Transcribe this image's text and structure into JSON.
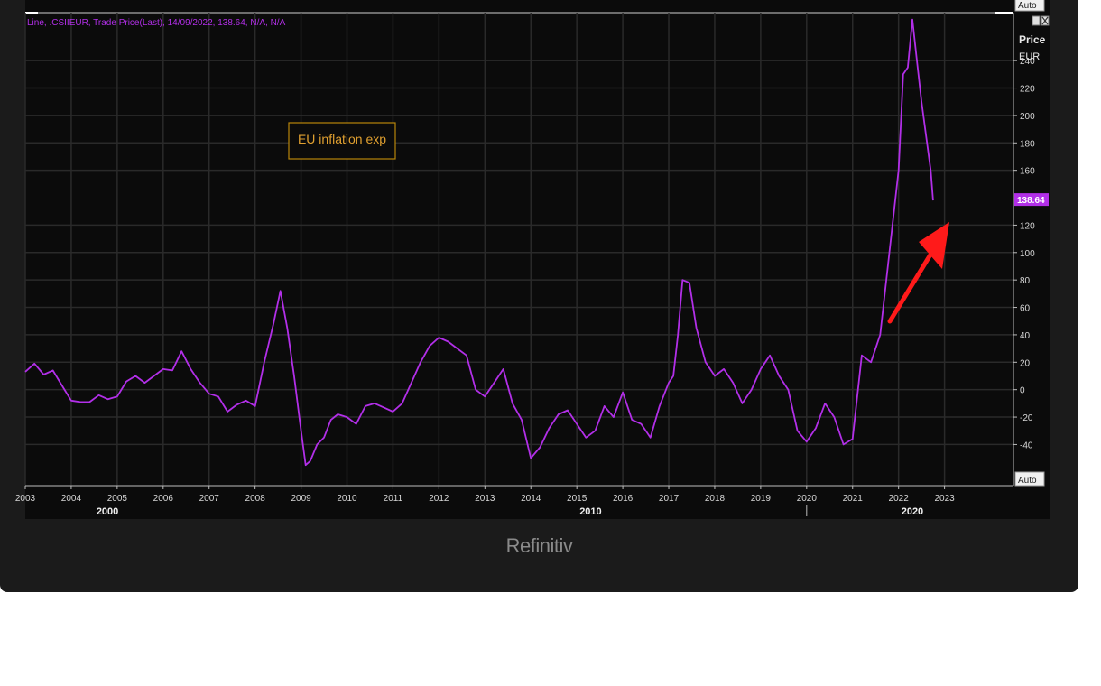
{
  "caption": "Refinitiv",
  "chart_data": {
    "type": "line",
    "header": "Line, .CSIIEUR, Trade Price(Last), 14/09/2022, 138.64, N/A, N/A",
    "annotation": "EU inflation exp",
    "last_value_label": "138.64",
    "auto_label_top": "Auto",
    "auto_label_bottom": "Auto",
    "axis_title": "Price",
    "axis_unit": "EUR",
    "ylim": [
      -70,
      275
    ],
    "xlim": [
      2003.0,
      2024.5
    ],
    "y_ticks": [
      -40,
      -20,
      0,
      20,
      40,
      60,
      80,
      100,
      120,
      160,
      180,
      200,
      220,
      240
    ],
    "x_year_ticks": [
      "2003",
      "2004",
      "2005",
      "2006",
      "2007",
      "2008",
      "2009",
      "2010",
      "2011",
      "2012",
      "2013",
      "2014",
      "2015",
      "2016",
      "2017",
      "2018",
      "2019",
      "2020",
      "2021",
      "2022",
      "2023"
    ],
    "x_decade_labels": [
      {
        "label": "2000",
        "x": 2006.3
      },
      {
        "label": "2010",
        "x": 2015.3
      },
      {
        "label": "2020",
        "x": 2022.3
      }
    ],
    "colors": {
      "line": "#b22fe8",
      "annotation_border": "#b8860b",
      "annotation_text": "#e0a030",
      "arrow": "#ff1a1a",
      "grid": "#2a2a2a",
      "axis_text": "#d8d8d8"
    },
    "series": [
      {
        "x": [
          2003.0,
          2003.2,
          2003.4,
          2003.6,
          2003.8,
          2004.0,
          2004.2,
          2004.4,
          2004.6,
          2004.8,
          2005.0,
          2005.2,
          2005.4,
          2005.6,
          2005.8,
          2006.0,
          2006.2,
          2006.4,
          2006.6,
          2006.8,
          2007.0,
          2007.2,
          2007.4,
          2007.6,
          2007.8,
          2008.0,
          2008.2,
          2008.4,
          2008.55,
          2008.7,
          2008.85,
          2009.0,
          2009.1,
          2009.2,
          2009.35,
          2009.5,
          2009.65,
          2009.8,
          2010.0,
          2010.2,
          2010.4,
          2010.6,
          2010.8,
          2011.0,
          2011.2,
          2011.4,
          2011.6,
          2011.8,
          2012.0,
          2012.2,
          2012.4,
          2012.6,
          2012.8,
          2013.0,
          2013.2,
          2013.4,
          2013.6,
          2013.8,
          2014.0,
          2014.2,
          2014.4,
          2014.6,
          2014.8,
          2015.0,
          2015.2,
          2015.4,
          2015.6,
          2015.8,
          2016.0,
          2016.2,
          2016.4,
          2016.6,
          2016.8,
          2017.0,
          2017.1,
          2017.2,
          2017.3,
          2017.45,
          2017.6,
          2017.8,
          2018.0,
          2018.2,
          2018.4,
          2018.6,
          2018.8,
          2019.0,
          2019.2,
          2019.4,
          2019.6,
          2019.8,
          2020.0,
          2020.2,
          2020.4,
          2020.6,
          2020.8,
          2021.0,
          2021.2,
          2021.4,
          2021.6,
          2021.8,
          2022.0,
          2022.1,
          2022.2,
          2022.3,
          2022.4,
          2022.5,
          2022.6,
          2022.7,
          2022.75
        ],
        "values": [
          13,
          19,
          11,
          14,
          3,
          -8,
          -9,
          -9,
          -4,
          -7,
          -5,
          6,
          10,
          5,
          10,
          15,
          14,
          28,
          15,
          5,
          -3,
          -5,
          -16,
          -11,
          -8,
          -12,
          20,
          48,
          72,
          45,
          10,
          -30,
          -55,
          -52,
          -40,
          -35,
          -22,
          -18,
          -20,
          -25,
          -12,
          -10,
          -13,
          -16,
          -10,
          5,
          20,
          32,
          38,
          35,
          30,
          25,
          0,
          -5,
          5,
          15,
          -10,
          -22,
          -50,
          -42,
          -28,
          -18,
          -15,
          -25,
          -35,
          -30,
          -12,
          -20,
          -2,
          -22,
          -25,
          -35,
          -12,
          5,
          10,
          40,
          80,
          78,
          45,
          20,
          10,
          15,
          5,
          -10,
          0,
          15,
          25,
          10,
          0,
          -30,
          -38,
          -28,
          -10,
          -20,
          -40,
          -36,
          25,
          20,
          40,
          100,
          160,
          230,
          235,
          270,
          240,
          210,
          185,
          160,
          138
        ]
      }
    ]
  }
}
